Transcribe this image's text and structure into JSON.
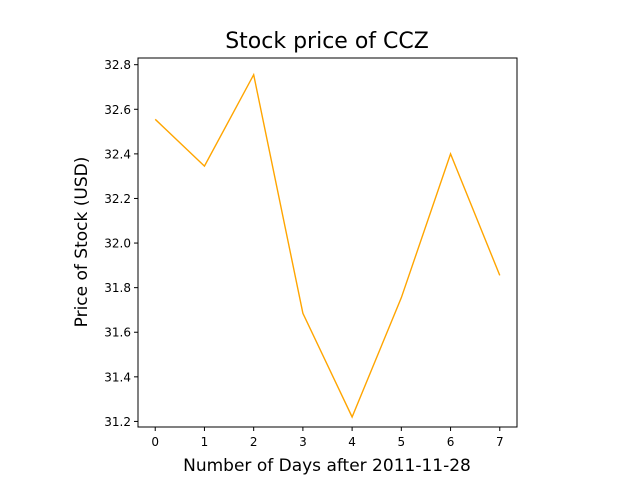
{
  "chart_data": {
    "type": "line",
    "title": "Stock price of CCZ",
    "xlabel": "Number of Days after 2011-11-28",
    "ylabel": "Price of Stock (USD)",
    "x": [
      0,
      1,
      2,
      3,
      4,
      5,
      6,
      7
    ],
    "series": [
      {
        "values": [
          32.555,
          32.345,
          32.755,
          31.685,
          31.22,
          31.755,
          32.4,
          31.855
        ],
        "color": "#ffa500"
      }
    ],
    "xlim": [
      -0.35,
      7.35
    ],
    "ylim": [
      31.175,
      32.83
    ],
    "xticks": [
      "0",
      "1",
      "2",
      "3",
      "4",
      "5",
      "6",
      "7"
    ],
    "yticks": [
      "31.2",
      "31.4",
      "31.6",
      "31.8",
      "32.0",
      "32.2",
      "32.4",
      "32.6",
      "32.8"
    ],
    "grid": false
  }
}
